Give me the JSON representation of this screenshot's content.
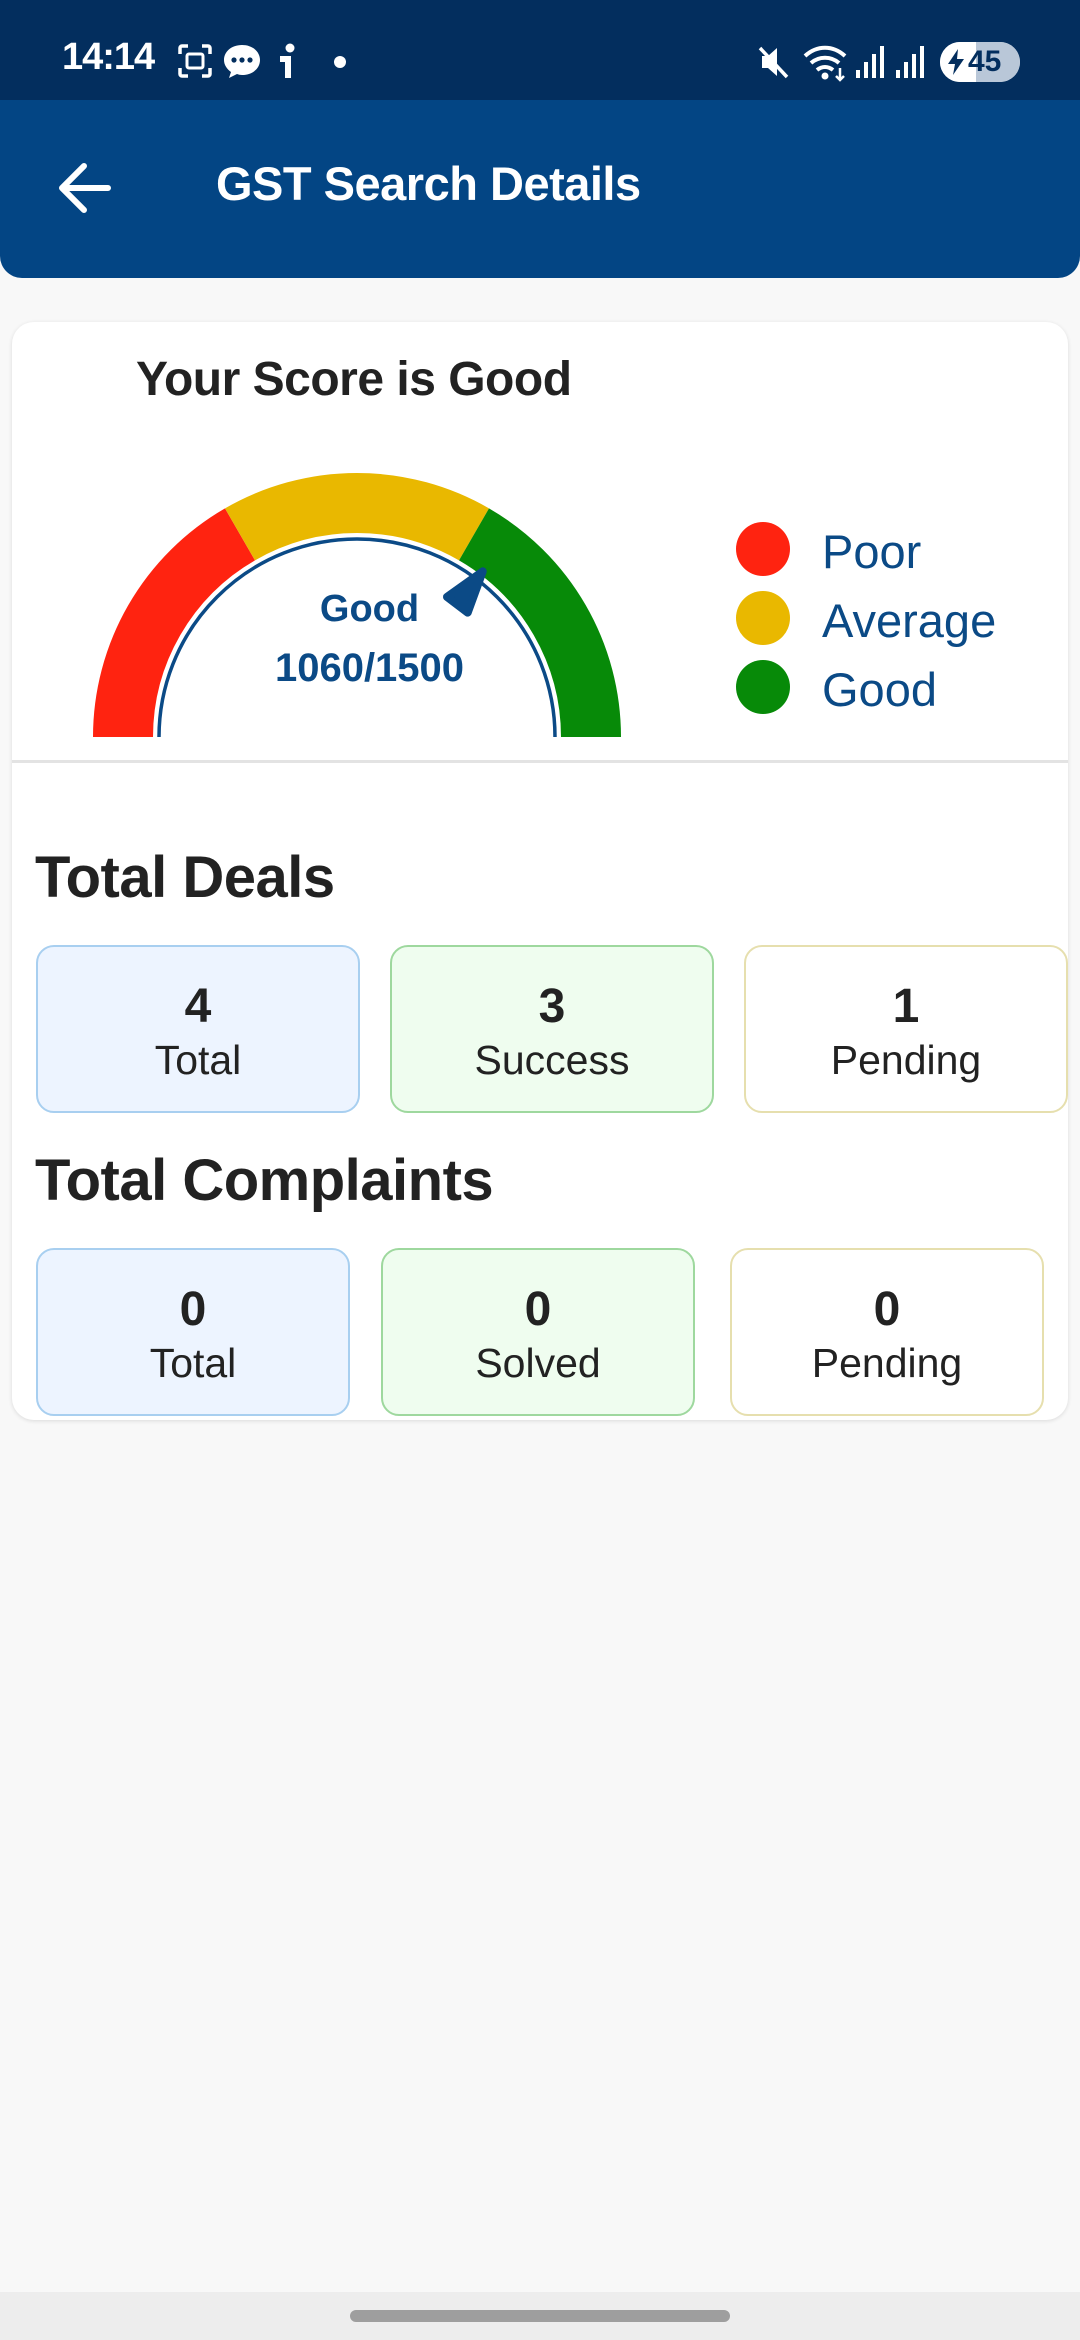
{
  "status_bar": {
    "time": "14:14",
    "battery": "45",
    "icons": [
      "screenshot-icon",
      "chat-icon",
      "info-icon",
      "dot-icon",
      "mute-icon",
      "wifi-icon",
      "signal-icon",
      "signal-icon",
      "battery-charging-icon"
    ]
  },
  "app_bar": {
    "back_icon": "arrow-left-icon",
    "title": "GST Search Details"
  },
  "score": {
    "title": "Your Score is Good",
    "status": "Good",
    "value_text": "1060/1500",
    "score": 1060,
    "max": 1500,
    "legend": [
      {
        "label": "Poor",
        "color": "#ff2310"
      },
      {
        "label": "Average",
        "color": "#e9b800"
      },
      {
        "label": "Good",
        "color": "#078a08"
      }
    ],
    "needle_color": "#0b4a86"
  },
  "deals": {
    "title": "Total Deals",
    "stats": [
      {
        "value": "4",
        "label": "Total"
      },
      {
        "value": "3",
        "label": "Success"
      },
      {
        "value": "1",
        "label": "Pending"
      }
    ]
  },
  "complaints": {
    "title": "Total Complaints",
    "stats": [
      {
        "value": "0",
        "label": "Total"
      },
      {
        "value": "0",
        "label": "Solved"
      },
      {
        "value": "0",
        "label": "Pending"
      }
    ]
  },
  "colors": {
    "app_bar": "#034584",
    "status_bar": "#032e5e",
    "accent": "#0b4a86"
  }
}
